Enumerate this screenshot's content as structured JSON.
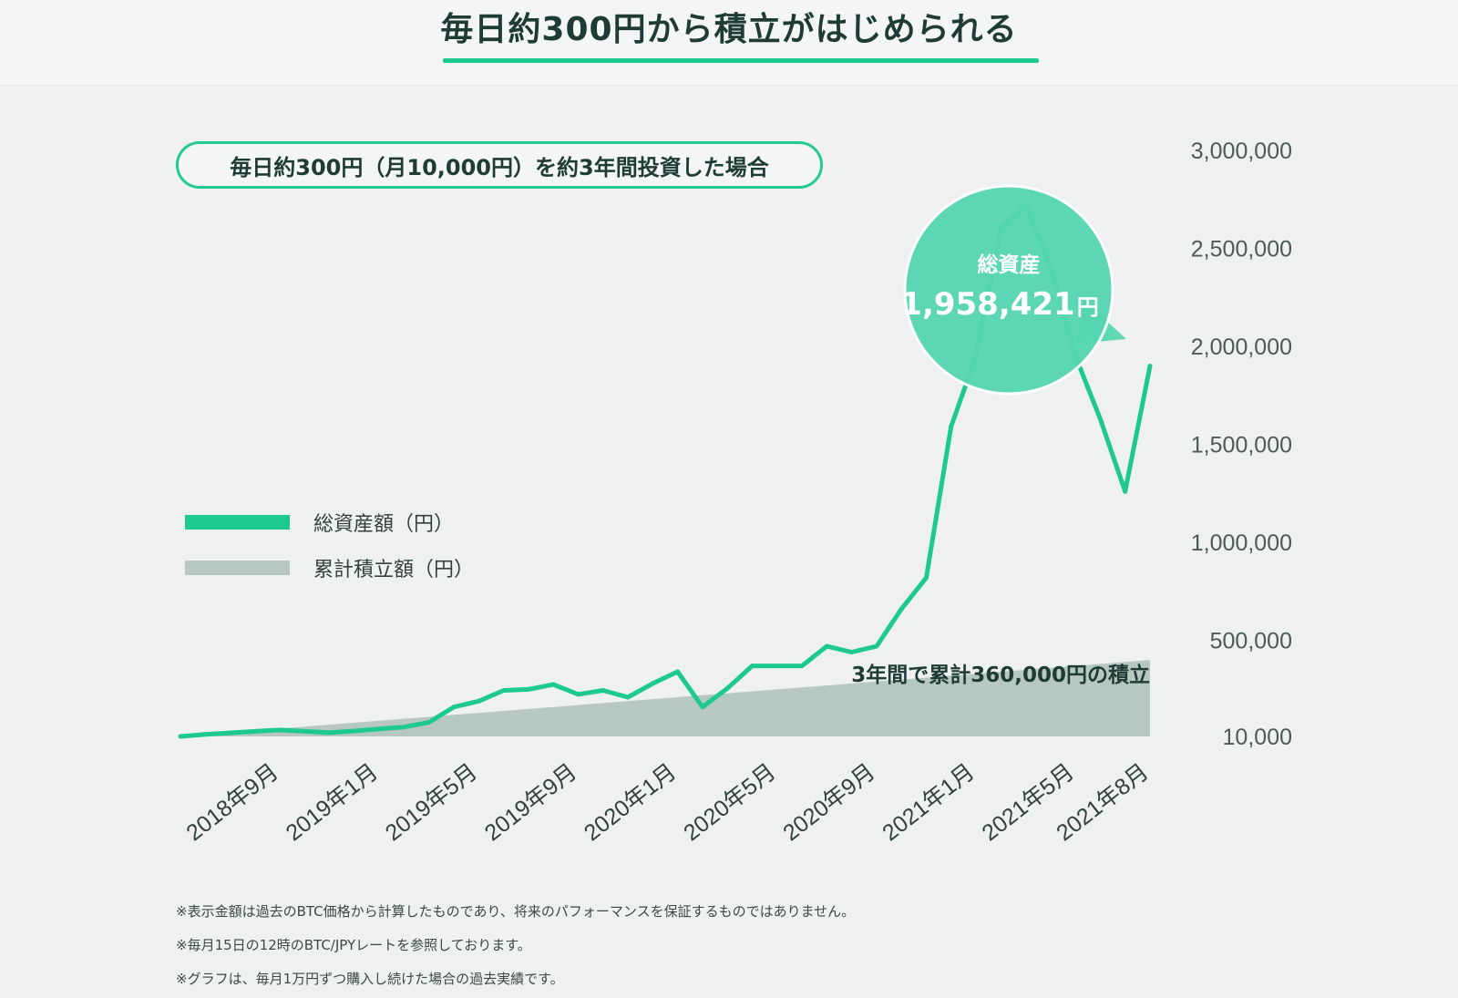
{
  "header": {
    "title": "毎日約300円から積立がはじめられる"
  },
  "condition_label": "毎日約300円（月10,000円）を約3年間投資した場合",
  "legend": {
    "total_assets": "総資産額（円）",
    "cumulative": "累計積立額（円）"
  },
  "callout": {
    "label": "総資産",
    "amount": "1,958,421",
    "unit": "円"
  },
  "annotation": "3年間で累計360,000円の積立",
  "colors": {
    "accent": "#1ec98f",
    "bubble": "#56d6b0",
    "area": "#b7c8c0",
    "background": "#eef1ef"
  },
  "chart_data": {
    "type": "line",
    "title": "毎日約300円（月10,000円）を約3年間投資した場合",
    "xlabel": "",
    "ylabel": "",
    "ylim": [
      10000,
      3000000
    ],
    "y_ticks": [
      {
        "value": 3000000,
        "label": "3,000,000"
      },
      {
        "value": 2500000,
        "label": "2,500,000"
      },
      {
        "value": 2000000,
        "label": "2,000,000"
      },
      {
        "value": 1500000,
        "label": "1,500,000"
      },
      {
        "value": 1000000,
        "label": "1,000,000"
      },
      {
        "value": 500000,
        "label": "500,000"
      },
      {
        "value": 10000,
        "label": "10,000"
      }
    ],
    "x_tick_labels": [
      {
        "index": 4,
        "label": "2018年9月"
      },
      {
        "index": 8,
        "label": "2019年1月"
      },
      {
        "index": 12,
        "label": "2019年5月"
      },
      {
        "index": 16,
        "label": "2019年9月"
      },
      {
        "index": 20,
        "label": "2020年1月"
      },
      {
        "index": 24,
        "label": "2020年5月"
      },
      {
        "index": 28,
        "label": "2020年9月"
      },
      {
        "index": 32,
        "label": "2021年1月"
      },
      {
        "index": 36,
        "label": "2021年5月"
      },
      {
        "index": 39,
        "label": "2021年8月"
      }
    ],
    "series": [
      {
        "name": "総資産額（円）",
        "values": [
          10000,
          20000,
          28000,
          36000,
          43000,
          36000,
          29000,
          38000,
          48000,
          58000,
          82000,
          160000,
          190000,
          245000,
          250000,
          275000,
          225000,
          245000,
          210000,
          280000,
          340000,
          160000,
          255000,
          370000,
          370000,
          370000,
          470000,
          440000,
          470000,
          660000,
          820000,
          1590000,
          1950000,
          2600000,
          2720000,
          2400000,
          1950000,
          1630000,
          1260000,
          1900000
        ]
      },
      {
        "name": "累計積立額（円）",
        "values": [
          10000,
          20000,
          30000,
          40000,
          50000,
          60000,
          70000,
          80000,
          90000,
          100000,
          110000,
          120000,
          130000,
          140000,
          150000,
          160000,
          170000,
          180000,
          190000,
          200000,
          210000,
          220000,
          230000,
          240000,
          250000,
          260000,
          270000,
          280000,
          290000,
          300000,
          310000,
          320000,
          330000,
          340000,
          350000,
          360000,
          370000,
          380000,
          390000,
          400000
        ]
      }
    ]
  },
  "footnotes": [
    "※表示金額は過去のBTC価格から計算したものであり、将来のパフォーマンスを保証するものではありません。",
    "※毎月15日の12時のBTC/JPYレートを参照しております。",
    "※グラフは、毎月1万円ずつ購入し続けた場合の過去実績です。"
  ]
}
